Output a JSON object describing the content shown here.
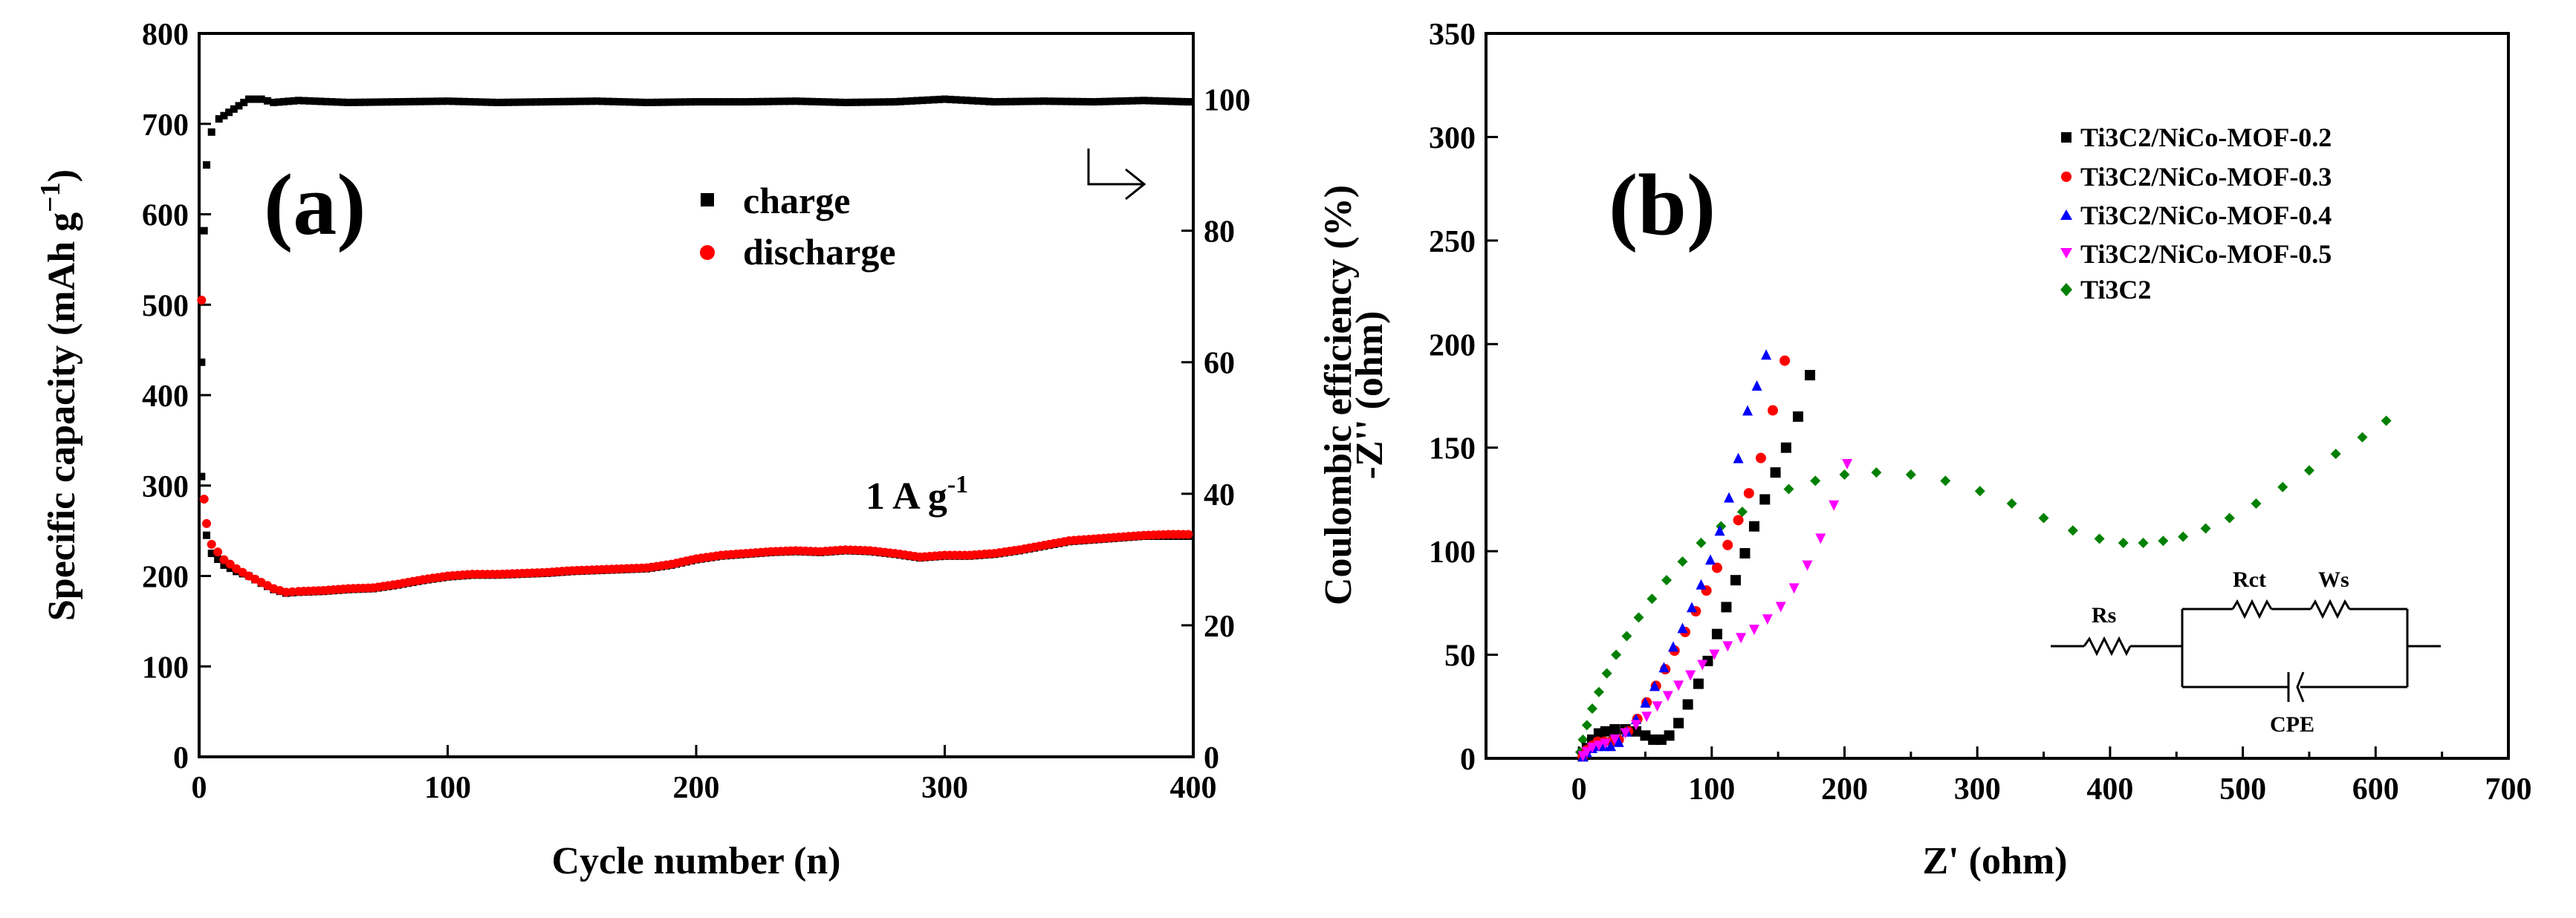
{
  "chart_data": [
    {
      "type": "scatter",
      "panel_label": "(a)",
      "xlabel": "Cycle number (n)",
      "ylabel": "Specific capacity (mAh g",
      "ylabel_sup": "−1",
      "ylabel_end": ")",
      "y2label": "Coulombic efficiency (%)",
      "xlim": [
        0,
        400
      ],
      "ylim": [
        0,
        800
      ],
      "y2lim": [
        0,
        110
      ],
      "xticks": [
        "0",
        "100",
        "200",
        "300",
        "400"
      ],
      "yticks": [
        "0",
        "100",
        "200",
        "300",
        "400",
        "500",
        "600",
        "700",
        "800"
      ],
      "y2ticks": [
        "0",
        "20",
        "40",
        "60",
        "80",
        "100"
      ],
      "annotation": "1 A g",
      "annotation_sup": "-1",
      "legend": [
        "charge",
        "discharge"
      ],
      "series": [
        {
          "name": "charge",
          "color": "#000000",
          "marker": "square",
          "x": [
            1,
            3,
            5,
            10,
            15,
            20,
            25,
            30,
            35,
            40,
            50,
            60,
            70,
            80,
            90,
            100,
            110,
            120,
            130,
            140,
            150,
            160,
            170,
            180,
            190,
            200,
            210,
            220,
            230,
            240,
            250,
            260,
            270,
            280,
            290,
            300,
            310,
            320,
            330,
            340,
            350,
            360,
            370,
            380,
            390,
            398
          ],
          "y": [
            310,
            245,
            225,
            212,
            205,
            200,
            192,
            185,
            181,
            182,
            183,
            185,
            186,
            190,
            195,
            199,
            201,
            201,
            202,
            203,
            205,
            206,
            207,
            208,
            212,
            218,
            222,
            224,
            226,
            227,
            226,
            228,
            227,
            224,
            220,
            222,
            222,
            224,
            228,
            233,
            238,
            240,
            242,
            244,
            244,
            244
          ]
        },
        {
          "name": "discharge",
          "color": "#ff0000",
          "marker": "circle",
          "x": [
            1,
            2,
            3,
            5,
            10,
            15,
            20,
            25,
            30,
            35,
            40,
            50,
            60,
            70,
            80,
            90,
            100,
            110,
            120,
            130,
            140,
            150,
            160,
            170,
            180,
            190,
            200,
            210,
            220,
            230,
            240,
            250,
            260,
            270,
            280,
            290,
            300,
            310,
            320,
            330,
            340,
            350,
            360,
            370,
            380,
            390,
            398
          ],
          "y": [
            505,
            285,
            258,
            235,
            218,
            208,
            200,
            193,
            186,
            182,
            183,
            184,
            186,
            187,
            191,
            196,
            200,
            202,
            202,
            203,
            204,
            206,
            207,
            208,
            209,
            213,
            219,
            223,
            225,
            227,
            228,
            227,
            229,
            228,
            225,
            221,
            223,
            223,
            225,
            229,
            234,
            239,
            241,
            243,
            245,
            246,
            246
          ]
        },
        {
          "name": "Coulombic efficiency",
          "axis": "right",
          "color": "#000000",
          "marker": "square",
          "x": [
            1,
            2,
            3,
            5,
            8,
            12,
            16,
            20,
            25,
            30,
            40,
            60,
            80,
            100,
            120,
            140,
            160,
            180,
            200,
            220,
            240,
            260,
            280,
            300,
            320,
            340,
            360,
            380,
            398
          ],
          "y": [
            60,
            80,
            90,
            95,
            97,
            98,
            99,
            100,
            100,
            99.5,
            99.8,
            99.5,
            99.6,
            99.7,
            99.5,
            99.6,
            99.7,
            99.5,
            99.6,
            99.6,
            99.7,
            99.5,
            99.6,
            100,
            99.6,
            99.7,
            99.6,
            99.8,
            99.6
          ]
        }
      ]
    },
    {
      "type": "scatter",
      "panel_label": "(b)",
      "xlabel": "Z' (ohm)",
      "ylabel": "-Z'' (ohm)",
      "xlim": [
        -70,
        700
      ],
      "ylim": [
        0,
        350
      ],
      "xticks": [
        "0",
        "100",
        "200",
        "300",
        "400",
        "500",
        "600",
        "700"
      ],
      "yticks": [
        "0",
        "50",
        "100",
        "150",
        "200",
        "250",
        "300",
        "350"
      ],
      "legend": [
        "Ti3C2/NiCo-MOF-0.2",
        "Ti3C2/NiCo-MOF-0.3",
        "Ti3C2/NiCo-MOF-0.4",
        "Ti3C2/NiCo-MOF-0.5",
        "Ti3C2"
      ],
      "circuit_labels": [
        "Rs",
        "Rct",
        "Ws",
        "CPE"
      ],
      "series": [
        {
          "name": "Ti3C2/NiCo-MOF-0.2",
          "color": "#000000",
          "marker": "square",
          "x": [
            3,
            6,
            10,
            15,
            20,
            27,
            35,
            43,
            50,
            56,
            62,
            68,
            75,
            82,
            90,
            97,
            104,
            111,
            118,
            125,
            132,
            140,
            148,
            156,
            165,
            174
          ],
          "y": [
            1,
            5,
            9,
            12,
            13,
            14,
            14,
            13,
            11,
            9,
            9,
            11,
            17,
            26,
            36,
            47,
            60,
            73,
            86,
            99,
            112,
            125,
            138,
            150,
            165,
            185
          ]
        },
        {
          "name": "Ti3C2/NiCo-MOF-0.3",
          "color": "#ff0000",
          "marker": "circle",
          "x": [
            3,
            6,
            10,
            14,
            19,
            24,
            30,
            37,
            44,
            51,
            58,
            65,
            72,
            80,
            88,
            96,
            104,
            112,
            120,
            128,
            137,
            146,
            155
          ],
          "y": [
            1,
            4,
            6,
            8,
            8,
            8,
            9,
            13,
            19,
            27,
            35,
            43,
            52,
            61,
            71,
            81,
            92,
            103,
            115,
            128,
            145,
            168,
            192
          ]
        },
        {
          "name": "Ti3C2/NiCo-MOF-0.4",
          "color": "#0000ff",
          "marker": "triangle-up",
          "x": [
            3,
            6,
            10,
            14,
            19,
            24,
            30,
            36,
            43,
            50,
            57,
            64,
            71,
            78,
            85,
            92,
            99,
            106,
            113,
            120,
            127,
            134,
            141
          ],
          "y": [
            1,
            3,
            5,
            6,
            6,
            6,
            8,
            13,
            19,
            27,
            35,
            44,
            54,
            63,
            73,
            84,
            96,
            110,
            126,
            145,
            168,
            180,
            195
          ]
        },
        {
          "name": "Ti3C2/NiCo-MOF-0.5",
          "color": "#ff00ff",
          "marker": "triangle-down",
          "x": [
            3,
            6,
            10,
            15,
            20,
            27,
            35,
            43,
            51,
            59,
            67,
            75,
            84,
            93,
            102,
            112,
            122,
            132,
            142,
            152,
            162,
            172,
            182,
            192,
            202
          ],
          "y": [
            1,
            3,
            5,
            6,
            7,
            9,
            12,
            16,
            20,
            25,
            30,
            35,
            40,
            45,
            50,
            54,
            58,
            62,
            67,
            73,
            82,
            93,
            106,
            122,
            142
          ]
        },
        {
          "name": "Ti3C2",
          "color": "#008000",
          "marker": "diamond",
          "x": [
            1,
            3,
            6,
            10,
            15,
            21,
            28,
            36,
            45,
            55,
            66,
            78,
            92,
            107,
            123,
            140,
            158,
            178,
            200,
            224,
            250,
            276,
            302,
            326,
            350,
            372,
            392,
            410,
            425,
            440,
            455,
            472,
            490,
            510,
            530,
            550,
            570,
            590,
            608
          ],
          "y": [
            3,
            9,
            16,
            24,
            32,
            41,
            50,
            59,
            68,
            77,
            86,
            95,
            104,
            112,
            119,
            125,
            130,
            134,
            137,
            138,
            137,
            134,
            129,
            123,
            116,
            110,
            106,
            104,
            104,
            105,
            107,
            111,
            116,
            123,
            131,
            139,
            147,
            155,
            163
          ]
        }
      ]
    }
  ]
}
